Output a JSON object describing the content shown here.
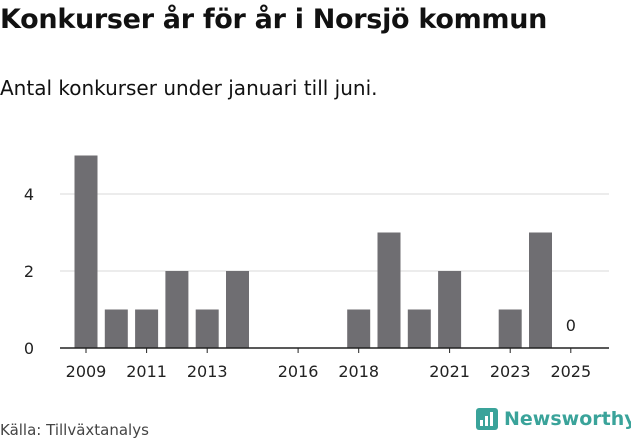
{
  "header": {
    "title": "Konkurser år för år i Norsjö kommun",
    "subtitle": "Antal konkurser under januari till juni."
  },
  "footer": {
    "source": "Källa: Tillväxtanalys",
    "brand": "Newsworthy",
    "brand_icon": "newsworthy-logo-icon",
    "brand_color": "#3aa39a"
  },
  "chart_data": {
    "type": "bar",
    "categories": [
      "2009",
      "2010",
      "2011",
      "2012",
      "2013",
      "2014",
      "2015",
      "2016",
      "2017",
      "2018",
      "2019",
      "2020",
      "2021",
      "2022",
      "2023",
      "2024",
      "2025"
    ],
    "values": [
      5,
      1,
      1,
      2,
      1,
      2,
      0,
      0,
      0,
      1,
      3,
      1,
      2,
      0,
      1,
      3,
      0
    ],
    "x_tick_labels": [
      "2009",
      "2011",
      "2013",
      "2016",
      "2018",
      "2021",
      "2023",
      "2025"
    ],
    "y_ticks": [
      0,
      2,
      4
    ],
    "ylim": [
      0,
      5
    ],
    "annotations": [
      {
        "category": "2025",
        "text": "0"
      }
    ],
    "grid": true,
    "bar_color": "#6f6e72",
    "xlabel": "",
    "ylabel": ""
  }
}
